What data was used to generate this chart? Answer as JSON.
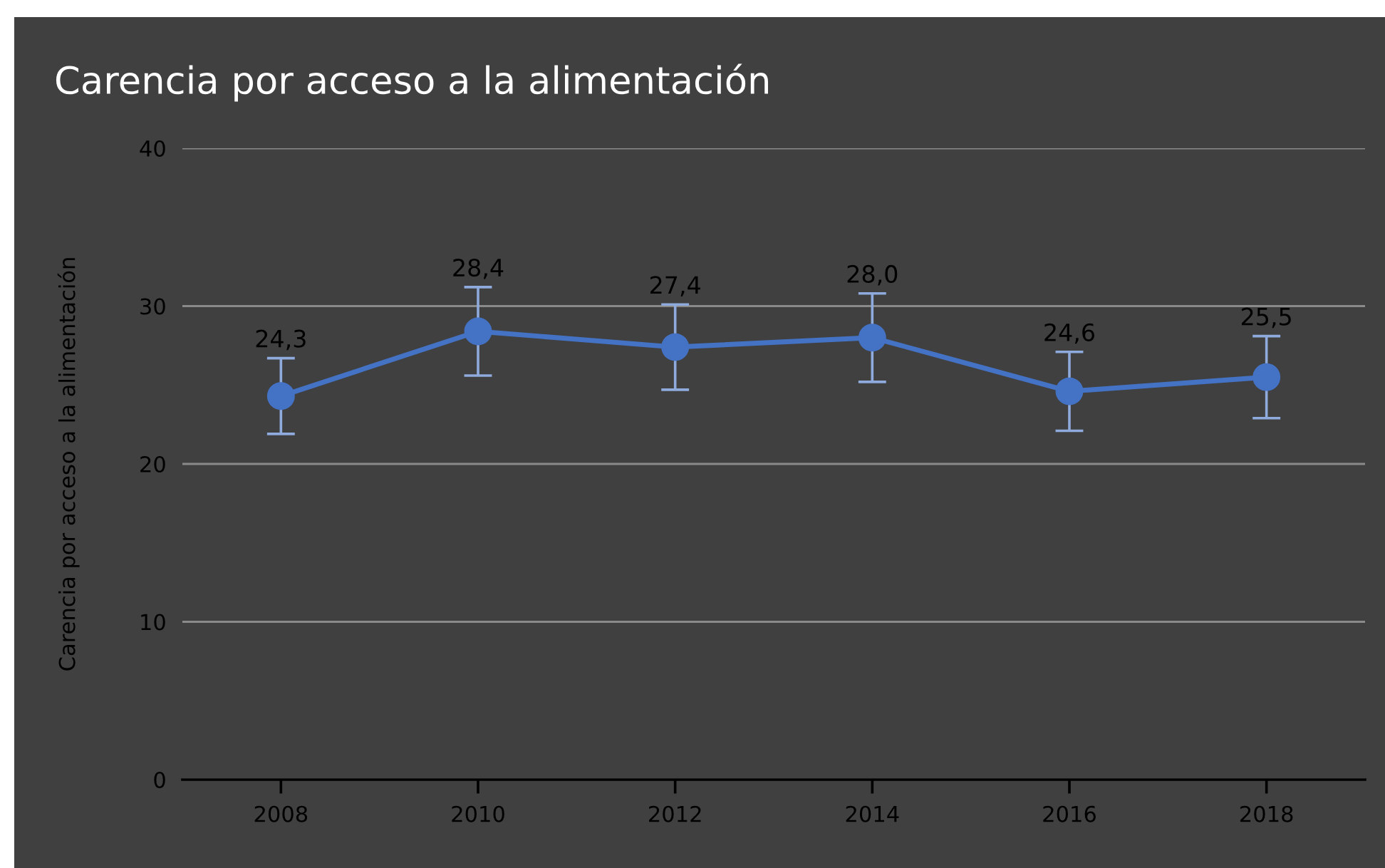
{
  "chart_data": {
    "type": "line",
    "title": "Carencia por acceso a la alimentación",
    "ylabel": "Carencia por acceso a la alimentación",
    "categories": [
      "2008",
      "2010",
      "2012",
      "2014",
      "2016",
      "2018"
    ],
    "series": [
      {
        "color": "#4472c4",
        "values": [
          24.3,
          28.4,
          27.4,
          28.0,
          24.6,
          25.5
        ],
        "errors": [
          2.4,
          2.8,
          2.7,
          2.8,
          2.5,
          2.6
        ],
        "value_labels": [
          "24,3",
          "28,4",
          "27,4",
          "28,0",
          "24,6",
          "25,5"
        ]
      }
    ],
    "ylim": [
      0,
      40
    ],
    "yticks": [
      0,
      10,
      20,
      30,
      40
    ],
    "grid": "y",
    "marker": "circle",
    "line_style": "solid"
  }
}
